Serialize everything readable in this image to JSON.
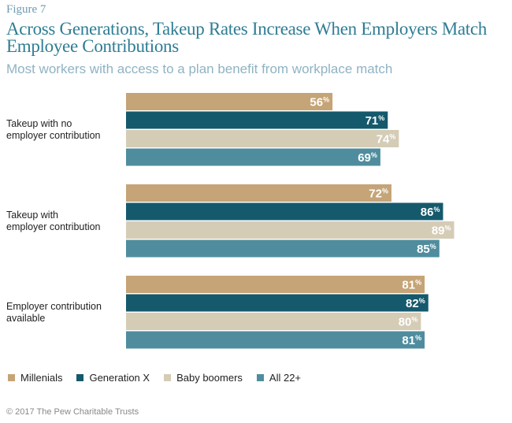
{
  "figure_label": "Figure 7",
  "title": "Across Generations, Takeup Rates Increase When Employers Match Employee Contributions",
  "subtitle": "Most workers with access to a plan benefit from workplace match",
  "copyright": "© 2017 The Pew Charitable Trusts",
  "colors": {
    "Millenials": "#c5a477",
    "Generation X": "#15596c",
    "Baby boomers": "#d5ccb6",
    "All 22+": "#4f8d9e"
  },
  "chart_data": {
    "type": "bar",
    "orientation": "horizontal",
    "title": "Across Generations, Takeup Rates Increase When Employers Match Employee Contributions",
    "subtitle": "Most workers with access to a plan benefit from workplace match",
    "categories": [
      "Takeup with no employer contribution",
      "Takeup with employer contribution",
      "Employer contribution available"
    ],
    "category_lines": [
      [
        "Takeup with no",
        "employer contribution"
      ],
      [
        "Takeup with",
        "employer contribution"
      ],
      [
        "Employer contribution",
        "available"
      ]
    ],
    "series": [
      {
        "name": "Millenials",
        "values": [
          56,
          72,
          81
        ]
      },
      {
        "name": "Generation X",
        "values": [
          71,
          86,
          82
        ]
      },
      {
        "name": "Baby boomers",
        "values": [
          74,
          89,
          80
        ]
      },
      {
        "name": "All 22+",
        "values": [
          69,
          85,
          81
        ]
      }
    ],
    "unit": "%",
    "xlim": [
      0,
      100
    ],
    "legend_position": "bottom"
  }
}
